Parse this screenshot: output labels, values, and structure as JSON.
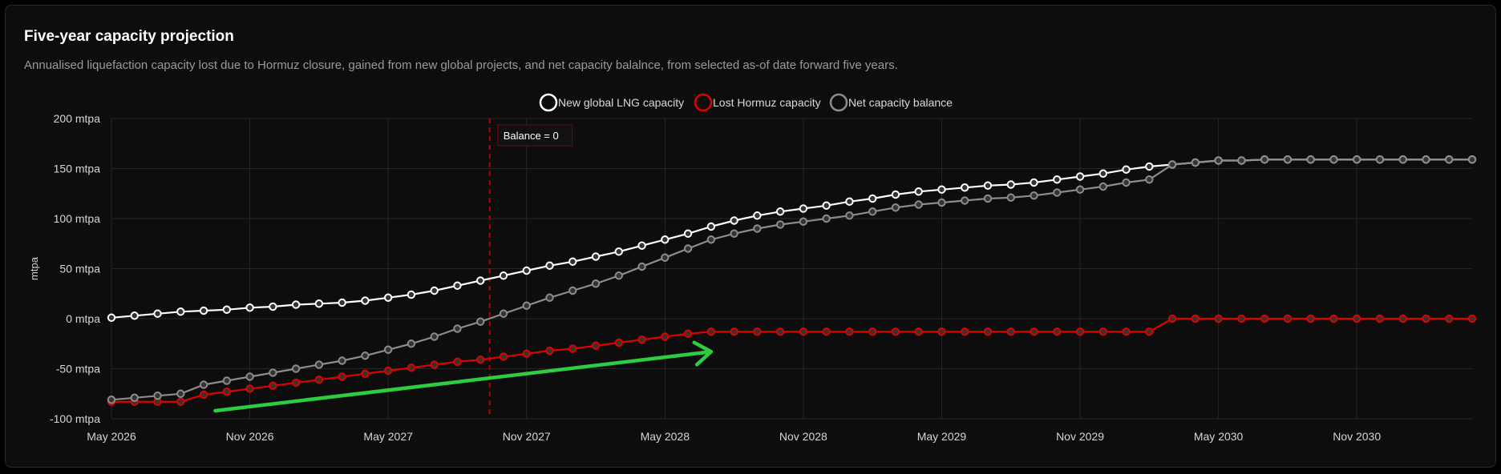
{
  "card": {
    "title": "Five-year capacity projection",
    "subtitle": "Annualised liquefaction capacity lost due to Hormuz closure, gained from new global projects, and net capacity balalnce, from selected as-of date forward five years."
  },
  "chart_data": {
    "type": "line",
    "ylabel": "mtpa",
    "ylim": [
      -100,
      200
    ],
    "yticks": [
      -100,
      -50,
      0,
      50,
      100,
      150,
      200
    ],
    "ytick_labels": [
      "-100 mtpa",
      "-50 mtpa",
      "0 mtpa",
      "50 mtpa",
      "100 mtpa",
      "150 mtpa",
      "200 mtpa"
    ],
    "x_start": "May 2026",
    "x_step": "1 month",
    "xticks": [
      {
        "index": 0,
        "label": "May 2026"
      },
      {
        "index": 6,
        "label": "Nov 2026"
      },
      {
        "index": 12,
        "label": "May 2027"
      },
      {
        "index": 18,
        "label": "Nov 2027"
      },
      {
        "index": 24,
        "label": "May 2028"
      },
      {
        "index": 30,
        "label": "Nov 2028"
      },
      {
        "index": 36,
        "label": "May 2029"
      },
      {
        "index": 42,
        "label": "Nov 2029"
      },
      {
        "index": 48,
        "label": "May 2030"
      },
      {
        "index": 54,
        "label": "Nov 2030"
      }
    ],
    "x_max_index": 59,
    "grid": true,
    "legend_position": "top-center",
    "series": [
      {
        "name": "New global LNG capacity",
        "color": "#ffffff",
        "values": [
          1,
          3,
          5,
          7,
          8,
          9,
          11,
          12,
          14,
          15,
          16,
          18,
          21,
          24,
          28,
          33,
          38,
          43,
          48,
          53,
          57,
          62,
          67,
          73,
          79,
          85,
          92,
          98,
          103,
          107,
          110,
          113,
          117,
          120,
          124,
          127,
          129,
          131,
          133,
          134,
          136,
          139,
          142,
          145,
          149,
          152,
          154,
          156,
          158,
          158,
          159,
          159,
          159,
          159,
          159,
          159,
          159,
          159,
          159,
          159
        ]
      },
      {
        "name": "Lost Hormuz capacity",
        "color": "#e00000",
        "values": [
          -83,
          -83,
          -83,
          -83,
          -76,
          -73,
          -70,
          -67,
          -64,
          -61,
          -58,
          -55,
          -52,
          -49,
          -46,
          -43,
          -41,
          -38,
          -35,
          -32,
          -30,
          -27,
          -24,
          -21,
          -18,
          -15,
          -13,
          -13,
          -13,
          -13,
          -13,
          -13,
          -13,
          -13,
          -13,
          -13,
          -13,
          -13,
          -13,
          -13,
          -13,
          -13,
          -13,
          -13,
          -13,
          -13,
          0,
          0,
          0,
          0,
          0,
          0,
          0,
          0,
          0,
          0,
          0,
          0,
          0,
          0
        ]
      },
      {
        "name": "Net capacity balance",
        "color": "#8c8c8c",
        "values": [
          -81,
          -79,
          -77,
          -75,
          -66,
          -62,
          -58,
          -54,
          -50,
          -46,
          -42,
          -37,
          -31,
          -25,
          -18,
          -10,
          -3,
          5,
          13,
          21,
          28,
          35,
          43,
          52,
          61,
          70,
          79,
          85,
          90,
          94,
          97,
          100,
          103,
          107,
          111,
          114,
          116,
          118,
          120,
          121,
          123,
          126,
          129,
          132,
          136,
          139,
          154,
          156,
          158,
          158,
          159,
          159,
          159,
          159,
          159,
          159,
          159,
          159,
          159,
          159
        ]
      }
    ],
    "annotations": {
      "balance_line": {
        "label": "Balance = 0",
        "x_index": 16.4,
        "color": "#b00000"
      },
      "trend_arrow": {
        "color": "#2ecc40",
        "from": {
          "x_index": 4.5,
          "y": -92
        },
        "to": {
          "x_index": 26,
          "y": -33
        }
      }
    }
  }
}
